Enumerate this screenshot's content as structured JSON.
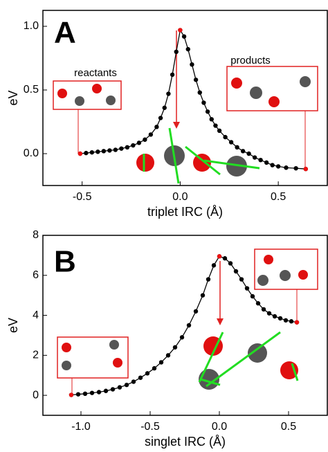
{
  "chart_data": [
    {
      "type": "line",
      "panel_label": "A",
      "xlabel": "triplet IRC (Å)",
      "ylabel": "eV",
      "annotations": [
        "reactants",
        "products"
      ],
      "xlim": [
        -0.7,
        0.75
      ],
      "ylim": [
        -0.25,
        1.125
      ],
      "xticks": [
        -0.5,
        {
          "value": 0,
          "label": "0.0"
        },
        0.5
      ],
      "yticks": [
        {
          "value": 0,
          "label": "0.0"
        },
        0.5,
        {
          "value": 1,
          "label": "1.0"
        }
      ],
      "series": [
        {
          "color": "#000000",
          "x": [
            -0.51,
            -0.48,
            -0.45,
            -0.42,
            -0.39,
            -0.36,
            -0.33,
            -0.3,
            -0.27,
            -0.24,
            -0.21,
            -0.18,
            -0.15,
            -0.12,
            -0.1,
            -0.08,
            -0.06,
            -0.04,
            -0.02,
            0,
            0.02,
            0.04,
            0.06,
            0.08,
            0.1,
            0.12,
            0.14,
            0.16,
            0.18,
            0.2,
            0.23,
            0.26,
            0.29,
            0.32,
            0.35,
            0.38,
            0.41,
            0.44,
            0.47,
            0.5,
            0.54,
            0.59,
            0.64
          ],
          "values": [
            0,
            0.005,
            0.01,
            0.015,
            0.02,
            0.025,
            0.03,
            0.04,
            0.05,
            0.065,
            0.085,
            0.11,
            0.15,
            0.21,
            0.28,
            0.36,
            0.47,
            0.62,
            0.8,
            0.97,
            0.92,
            0.82,
            0.7,
            0.58,
            0.48,
            0.4,
            0.33,
            0.27,
            0.22,
            0.18,
            0.13,
            0.09,
            0.05,
            0.02,
            0,
            -0.03,
            -0.05,
            -0.07,
            -0.09,
            -0.1,
            -0.11,
            -0.115,
            -0.12
          ]
        },
        {
          "color": "#ee1111",
          "x": [
            -0.51,
            0,
            0.64
          ],
          "values": [
            0,
            0.97,
            -0.12
          ]
        }
      ]
    },
    {
      "type": "line",
      "panel_label": "B",
      "xlabel": "singlet IRC (Å)",
      "ylabel": "eV",
      "xlim": [
        -1.275,
        0.78
      ],
      "ylim": [
        -1,
        8
      ],
      "xticks": [
        {
          "value": -1,
          "label": "-1.0"
        },
        -0.5,
        {
          "value": 0,
          "label": "0.0"
        },
        0.5
      ],
      "yticks": [
        0,
        2,
        4,
        6,
        8
      ],
      "series": [
        {
          "color": "#000000",
          "x": [
            -1.07,
            -1.02,
            -0.97,
            -0.92,
            -0.87,
            -0.82,
            -0.77,
            -0.72,
            -0.67,
            -0.62,
            -0.57,
            -0.52,
            -0.47,
            -0.42,
            -0.37,
            -0.32,
            -0.27,
            -0.22,
            -0.17,
            -0.12,
            -0.08,
            -0.04,
            0,
            0.04,
            0.08,
            0.12,
            0.16,
            0.2,
            0.24,
            0.28,
            0.32,
            0.36,
            0.4,
            0.44,
            0.48,
            0.52,
            0.56
          ],
          "values": [
            0.02,
            0.05,
            0.08,
            0.12,
            0.16,
            0.22,
            0.3,
            0.4,
            0.52,
            0.68,
            0.88,
            1.1,
            1.35,
            1.65,
            2.0,
            2.4,
            2.9,
            3.5,
            4.2,
            5.0,
            5.8,
            6.5,
            6.95,
            6.85,
            6.6,
            6.2,
            5.8,
            5.35,
            4.95,
            4.6,
            4.3,
            4.1,
            3.95,
            3.85,
            3.75,
            3.7,
            3.65
          ]
        },
        {
          "color": "#ee1111",
          "x": [
            -1.07,
            0,
            0.56
          ],
          "values": [
            0.02,
            6.95,
            3.65
          ]
        }
      ]
    }
  ]
}
